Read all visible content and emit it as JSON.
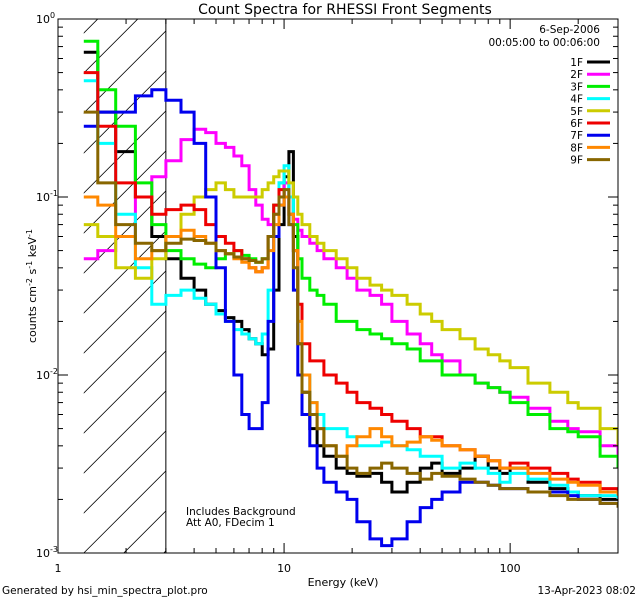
{
  "chart_data": {
    "type": "line",
    "title": "Count Spectra for RHESSI Front Segments",
    "xlabel": "Energy (keV)",
    "ylabel_parts": [
      "counts cm",
      "-2",
      " s",
      "-1",
      " keV",
      "-1"
    ],
    "xscale": "log",
    "yscale": "log",
    "xlim": [
      1,
      300
    ],
    "ylim": [
      0.001,
      1
    ],
    "x_tick_labels": [
      {
        "value": 1,
        "label": "1"
      },
      {
        "value": 10,
        "label": "10"
      },
      {
        "value": 100,
        "label": "100"
      }
    ],
    "y_tick_labels": [
      {
        "value": 1,
        "base": "10",
        "exp": "0"
      },
      {
        "value": 0.1,
        "base": "10",
        "exp": "-1"
      },
      {
        "value": 0.01,
        "base": "10",
        "exp": "-2"
      },
      {
        "value": 0.001,
        "base": "10",
        "exp": "-3"
      }
    ],
    "attenuator_shading": {
      "xmin": 1.3,
      "xmax": 3.0,
      "label": "hatched low-energy region"
    },
    "legend": {
      "placement": "top-right",
      "date": "6-Sep-2006",
      "time_range": "00:05:00 to 00:06:00"
    },
    "annotations": [
      "Includes Background",
      "Att A0, FDecim 1"
    ],
    "footer_left": "Generated by hsi_min_spectra_plot.pro",
    "footer_right": "13-Apr-2023 08:02",
    "series": [
      {
        "name": "1F",
        "color": "#000000",
        "x": [
          1.3,
          1.5,
          1.8,
          2.2,
          2.6,
          3.0,
          3.5,
          4.0,
          4.5,
          5.0,
          5.5,
          6.0,
          6.5,
          7.0,
          7.5,
          8.0,
          8.5,
          9.0,
          9.5,
          10.0,
          10.5,
          11.0,
          11.5,
          12,
          13,
          14,
          15,
          17,
          19,
          21,
          24,
          27,
          30,
          35,
          40,
          45,
          50,
          60,
          70,
          80,
          90,
          100,
          120,
          150,
          180,
          200,
          250,
          300
        ],
        "y": [
          0.65,
          0.3,
          0.18,
          0.1,
          0.06,
          0.045,
          0.035,
          0.03,
          0.025,
          0.023,
          0.021,
          0.02,
          0.018,
          0.016,
          0.015,
          0.013,
          0.014,
          0.03,
          0.07,
          0.13,
          0.18,
          0.06,
          0.015,
          0.008,
          0.005,
          0.004,
          0.0035,
          0.003,
          0.0028,
          0.0027,
          0.0028,
          0.0025,
          0.0022,
          0.0025,
          0.003,
          0.0032,
          0.0028,
          0.003,
          0.0035,
          0.003,
          0.0028,
          0.003,
          0.0025,
          0.0023,
          0.0022,
          0.0021,
          0.002,
          0.002
        ]
      },
      {
        "name": "2F",
        "color": "#ff00ff",
        "x": [
          1.3,
          1.5,
          1.8,
          2.2,
          2.6,
          3.0,
          3.5,
          4.0,
          4.5,
          5.0,
          5.5,
          6.0,
          6.5,
          7.0,
          7.5,
          8.0,
          8.5,
          9.0,
          9.5,
          10.0,
          10.5,
          11.0,
          11.5,
          12,
          13,
          14,
          15,
          17,
          19,
          21,
          24,
          27,
          30,
          35,
          40,
          45,
          50,
          60,
          70,
          80,
          90,
          100,
          120,
          150,
          180,
          200,
          250,
          300
        ],
        "y": [
          0.045,
          0.05,
          0.06,
          0.1,
          0.13,
          0.16,
          0.21,
          0.24,
          0.23,
          0.2,
          0.19,
          0.17,
          0.15,
          0.11,
          0.09,
          0.075,
          0.07,
          0.08,
          0.1,
          0.12,
          0.1,
          0.075,
          0.065,
          0.06,
          0.055,
          0.05,
          0.045,
          0.04,
          0.035,
          0.03,
          0.028,
          0.025,
          0.02,
          0.017,
          0.015,
          0.013,
          0.012,
          0.01,
          0.009,
          0.0085,
          0.008,
          0.0075,
          0.0065,
          0.0055,
          0.005,
          0.0048,
          0.004,
          0.0035
        ]
      },
      {
        "name": "3F",
        "color": "#00ee00",
        "x": [
          1.3,
          1.5,
          1.8,
          2.2,
          2.6,
          3.0,
          3.5,
          4.0,
          4.5,
          5.0,
          5.5,
          6.0,
          6.5,
          7.0,
          7.5,
          8.0,
          8.5,
          9.0,
          9.5,
          10.0,
          10.5,
          11.0,
          11.5,
          12,
          13,
          14,
          15,
          17,
          19,
          21,
          24,
          27,
          30,
          35,
          40,
          45,
          50,
          60,
          70,
          80,
          90,
          100,
          120,
          150,
          180,
          200,
          250,
          300
        ],
        "y": [
          0.75,
          0.4,
          0.25,
          0.12,
          0.07,
          0.05,
          0.045,
          0.042,
          0.04,
          0.045,
          0.048,
          0.05,
          0.047,
          0.045,
          0.043,
          0.045,
          0.06,
          0.09,
          0.12,
          0.14,
          0.1,
          0.07,
          0.045,
          0.035,
          0.03,
          0.028,
          0.025,
          0.02,
          0.02,
          0.018,
          0.017,
          0.016,
          0.015,
          0.014,
          0.012,
          0.012,
          0.01,
          0.01,
          0.009,
          0.0085,
          0.008,
          0.007,
          0.006,
          0.005,
          0.0048,
          0.0045,
          0.0035,
          0.003
        ]
      },
      {
        "name": "4F",
        "color": "#00ffff",
        "x": [
          1.3,
          1.5,
          1.8,
          2.2,
          2.6,
          3.0,
          3.5,
          4.0,
          4.5,
          5.0,
          5.5,
          6.0,
          6.5,
          7.0,
          7.5,
          8.0,
          8.5,
          9.0,
          9.5,
          10.0,
          10.5,
          11.0,
          11.5,
          12,
          13,
          14,
          15,
          17,
          19,
          21,
          24,
          27,
          30,
          35,
          40,
          45,
          50,
          60,
          70,
          80,
          90,
          100,
          120,
          150,
          180,
          200,
          250,
          300
        ],
        "y": [
          0.45,
          0.2,
          0.08,
          0.04,
          0.025,
          0.028,
          0.03,
          0.027,
          0.025,
          0.022,
          0.02,
          0.018,
          0.017,
          0.016,
          0.015,
          0.017,
          0.03,
          0.07,
          0.12,
          0.15,
          0.1,
          0.05,
          0.02,
          0.01,
          0.007,
          0.006,
          0.005,
          0.005,
          0.0045,
          0.004,
          0.004,
          0.0042,
          0.004,
          0.0038,
          0.0035,
          0.0035,
          0.003,
          0.0032,
          0.003,
          0.0028,
          0.0025,
          0.0028,
          0.0026,
          0.0024,
          0.0022,
          0.0021,
          0.0021,
          0.002
        ]
      },
      {
        "name": "5F",
        "color": "#cccc00",
        "x": [
          1.3,
          1.5,
          1.8,
          2.2,
          2.6,
          3.0,
          3.5,
          4.0,
          4.5,
          5.0,
          5.5,
          6.0,
          6.5,
          7.0,
          7.5,
          8.0,
          8.5,
          9.0,
          9.5,
          10.0,
          10.5,
          11.0,
          11.5,
          12,
          13,
          14,
          15,
          17,
          19,
          21,
          24,
          27,
          30,
          35,
          40,
          45,
          50,
          60,
          70,
          80,
          90,
          100,
          120,
          150,
          180,
          200,
          250,
          300
        ],
        "y": [
          0.07,
          0.06,
          0.04,
          0.035,
          0.045,
          0.06,
          0.08,
          0.1,
          0.11,
          0.12,
          0.11,
          0.1,
          0.1,
          0.1,
          0.1,
          0.11,
          0.12,
          0.13,
          0.14,
          0.14,
          0.12,
          0.1,
          0.08,
          0.07,
          0.06,
          0.055,
          0.05,
          0.045,
          0.04,
          0.035,
          0.032,
          0.03,
          0.028,
          0.025,
          0.022,
          0.02,
          0.018,
          0.016,
          0.014,
          0.013,
          0.012,
          0.011,
          0.009,
          0.008,
          0.007,
          0.0065,
          0.005,
          0.004
        ]
      },
      {
        "name": "6F",
        "color": "#ee0000",
        "x": [
          1.3,
          1.5,
          1.8,
          2.2,
          2.6,
          3.0,
          3.5,
          4.0,
          4.5,
          5.0,
          5.5,
          6.0,
          6.5,
          7.0,
          7.5,
          8.0,
          8.5,
          9.0,
          9.5,
          10.0,
          10.5,
          11.0,
          11.5,
          12,
          13,
          14,
          15,
          17,
          19,
          21,
          24,
          27,
          30,
          35,
          40,
          45,
          50,
          60,
          70,
          80,
          90,
          100,
          120,
          150,
          180,
          200,
          250,
          300
        ],
        "y": [
          0.5,
          0.25,
          0.12,
          0.1,
          0.08,
          0.085,
          0.09,
          0.085,
          0.07,
          0.06,
          0.055,
          0.05,
          0.045,
          0.04,
          0.038,
          0.04,
          0.06,
          0.09,
          0.11,
          0.1,
          0.08,
          0.05,
          0.025,
          0.015,
          0.012,
          0.012,
          0.01,
          0.009,
          0.008,
          0.007,
          0.0065,
          0.006,
          0.0055,
          0.005,
          0.0045,
          0.0045,
          0.004,
          0.0038,
          0.0035,
          0.0033,
          0.003,
          0.0032,
          0.003,
          0.0028,
          0.0026,
          0.0025,
          0.0023,
          0.0022
        ]
      },
      {
        "name": "7F",
        "color": "#0000ee",
        "x": [
          1.3,
          1.5,
          1.8,
          2.2,
          2.6,
          3.0,
          3.5,
          4.0,
          4.5,
          5.0,
          5.5,
          6.0,
          6.5,
          7.0,
          7.5,
          8.0,
          8.5,
          9.0,
          9.5,
          10.0,
          10.5,
          11.0,
          11.5,
          12,
          13,
          14,
          15,
          17,
          19,
          21,
          24,
          27,
          30,
          35,
          40,
          45,
          50,
          60,
          70,
          80,
          90,
          100,
          120,
          150,
          180,
          200,
          250,
          300
        ],
        "y": [
          0.25,
          0.3,
          0.3,
          0.37,
          0.4,
          0.35,
          0.3,
          0.2,
          0.1,
          0.04,
          0.02,
          0.01,
          0.006,
          0.005,
          0.005,
          0.007,
          0.02,
          0.06,
          0.09,
          0.1,
          0.07,
          0.03,
          0.01,
          0.006,
          0.004,
          0.003,
          0.0025,
          0.0022,
          0.002,
          0.0015,
          0.0012,
          0.0011,
          0.0012,
          0.0015,
          0.0018,
          0.002,
          0.0022,
          0.0025,
          0.0025,
          0.0024,
          0.0023,
          0.0023,
          0.0022,
          0.0022,
          0.0021,
          0.002,
          0.0019,
          0.0018
        ]
      },
      {
        "name": "8F",
        "color": "#ff8800",
        "x": [
          1.3,
          1.5,
          1.8,
          2.2,
          2.6,
          3.0,
          3.5,
          4.0,
          4.5,
          5.0,
          5.5,
          6.0,
          6.5,
          7.0,
          7.5,
          8.0,
          8.5,
          9.0,
          9.5,
          10.0,
          10.5,
          11.0,
          11.5,
          12,
          13,
          14,
          15,
          17,
          19,
          21,
          24,
          27,
          30,
          35,
          40,
          45,
          50,
          60,
          70,
          80,
          90,
          100,
          120,
          150,
          180,
          200,
          250,
          300
        ],
        "y": [
          0.1,
          0.09,
          0.06,
          0.045,
          0.05,
          0.06,
          0.065,
          0.06,
          0.055,
          0.05,
          0.048,
          0.045,
          0.043,
          0.04,
          0.038,
          0.04,
          0.05,
          0.07,
          0.09,
          0.1,
          0.08,
          0.05,
          0.02,
          0.01,
          0.007,
          0.005,
          0.004,
          0.0035,
          0.004,
          0.0045,
          0.005,
          0.0045,
          0.004,
          0.0042,
          0.0045,
          0.0043,
          0.004,
          0.0038,
          0.0035,
          0.0033,
          0.003,
          0.003,
          0.0028,
          0.0026,
          0.0025,
          0.0024,
          0.0022,
          0.0021
        ]
      },
      {
        "name": "9F",
        "color": "#886600",
        "x": [
          1.3,
          1.5,
          1.8,
          2.2,
          2.6,
          3.0,
          3.5,
          4.0,
          4.5,
          5.0,
          5.5,
          6.0,
          6.5,
          7.0,
          7.5,
          8.0,
          8.5,
          9.0,
          9.5,
          10.0,
          10.5,
          11.0,
          11.5,
          12,
          13,
          14,
          15,
          17,
          19,
          21,
          24,
          27,
          30,
          35,
          40,
          45,
          50,
          60,
          70,
          80,
          90,
          100,
          120,
          150,
          180,
          200,
          250,
          300
        ],
        "y": [
          0.3,
          0.12,
          0.07,
          0.055,
          0.05,
          0.055,
          0.058,
          0.057,
          0.055,
          0.05,
          0.048,
          0.046,
          0.045,
          0.044,
          0.043,
          0.045,
          0.06,
          0.08,
          0.1,
          0.11,
          0.07,
          0.04,
          0.015,
          0.008,
          0.006,
          0.005,
          0.004,
          0.0035,
          0.003,
          0.0028,
          0.003,
          0.0032,
          0.003,
          0.0028,
          0.0026,
          0.0028,
          0.0027,
          0.0026,
          0.0025,
          0.0024,
          0.0023,
          0.0023,
          0.0022,
          0.0021,
          0.002,
          0.002,
          0.0019,
          0.0018
        ]
      }
    ]
  }
}
